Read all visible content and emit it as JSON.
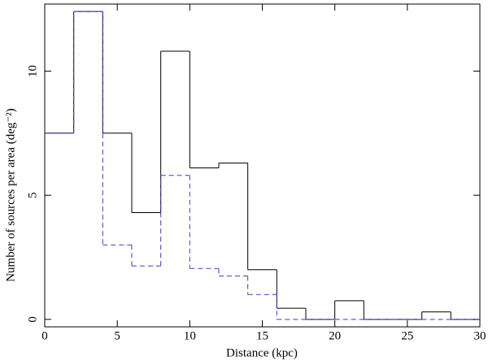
{
  "chart_data": {
    "type": "histogram",
    "x_label": "Distance (kpc)",
    "y_label": "Number of sources per area (deg⁻²)",
    "bins": [
      0,
      2,
      4,
      6,
      8,
      10,
      12,
      14,
      16,
      18,
      20,
      22,
      24,
      26,
      28,
      30
    ],
    "series": [
      {
        "color": "#000000",
        "linestyle": "solid",
        "values": [
          7.5,
          12.4,
          7.5,
          4.3,
          10.8,
          6.1,
          6.3,
          2.0,
          0.45,
          0,
          0.75,
          0,
          0,
          0.3,
          0
        ]
      },
      {
        "color": "#3a3ad0",
        "linestyle": "dashed",
        "values": [
          7.5,
          12.4,
          3.0,
          2.15,
          5.8,
          2.05,
          1.75,
          1.0,
          0,
          0,
          0,
          0,
          0,
          0,
          0
        ]
      }
    ],
    "xlim": [
      0,
      30
    ],
    "xticks": [
      0,
      5,
      10,
      15,
      20,
      25,
      30
    ],
    "ylim": [
      -0.3,
      12.7
    ],
    "yticks": [
      0,
      5,
      10
    ]
  }
}
